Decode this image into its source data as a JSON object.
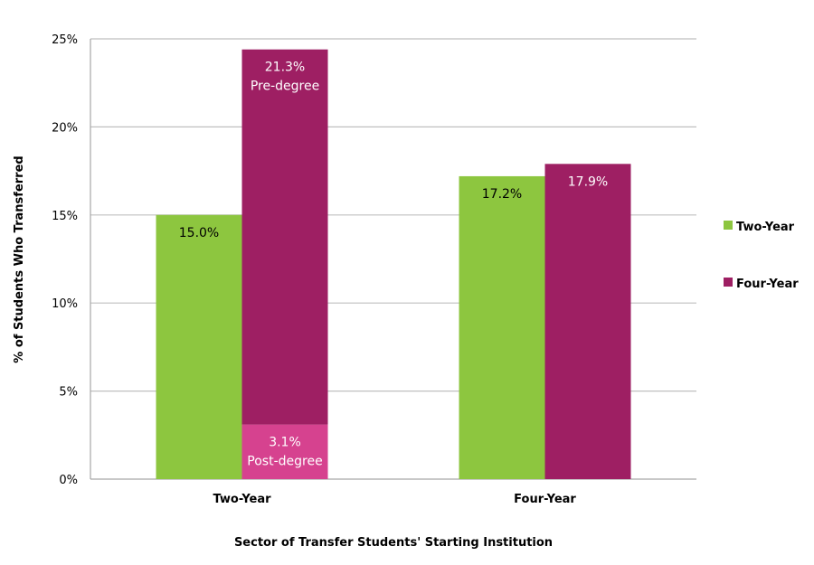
{
  "chart_data": {
    "type": "bar",
    "title": "",
    "xlabel": "Sector of Transfer Students' Starting Institution",
    "ylabel": "% of Students Who Transferred",
    "ylim": [
      0,
      25
    ],
    "yticks": [
      0,
      5,
      10,
      15,
      20,
      25
    ],
    "ytick_labels": [
      "0%",
      "5%",
      "10%",
      "15%",
      "20%",
      "25%"
    ],
    "grid": true,
    "legend_position": "right",
    "categories": [
      "Two-Year",
      "Four-Year"
    ],
    "series": [
      {
        "name": "Two-Year",
        "color": "#8DC63F",
        "stacks": [
          [
            {
              "value": 15.0,
              "label": "15.0%",
              "sublabel": "",
              "color": "#8DC63F"
            }
          ],
          [
            {
              "value": 17.2,
              "label": "17.2%",
              "sublabel": "",
              "color": "#8DC63F"
            }
          ]
        ]
      },
      {
        "name": "Four-Year",
        "color": "#9E1F63",
        "stacks": [
          [
            {
              "value": 3.1,
              "label": "3.1%",
              "sublabel": "Post-degree",
              "color": "#D6428F"
            },
            {
              "value": 21.3,
              "label": "21.3%",
              "sublabel": "Pre-degree",
              "color": "#9E1F63"
            }
          ],
          [
            {
              "value": 17.9,
              "label": "17.9%",
              "sublabel": "",
              "color": "#9E1F63"
            }
          ]
        ]
      }
    ]
  }
}
